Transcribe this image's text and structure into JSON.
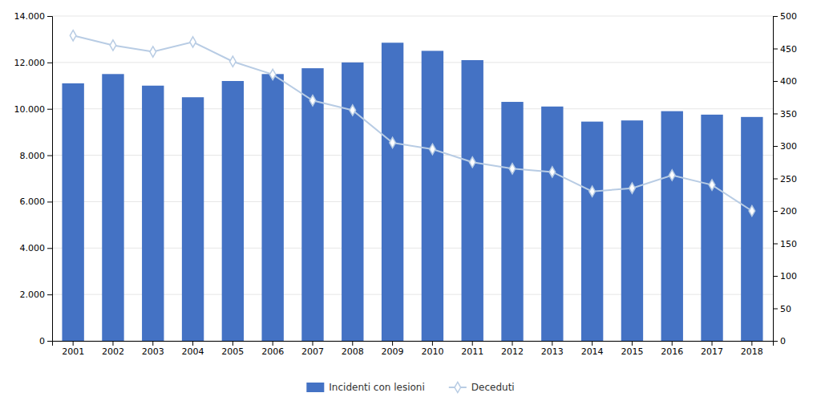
{
  "chart_data": {
    "type": "bar",
    "categories": [
      2001,
      2002,
      2003,
      2004,
      2005,
      2006,
      2007,
      2008,
      2009,
      2010,
      2011,
      2012,
      2013,
      2014,
      2015,
      2016,
      2017,
      2018
    ],
    "series": [
      {
        "name": "Incidenti con lesioni",
        "type": "bar",
        "color": "#4472c4",
        "values": [
          11100,
          11500,
          11000,
          10500,
          11200,
          11500,
          11750,
          12000,
          12850,
          12500,
          12100,
          10300,
          10100,
          9450,
          9500,
          9900,
          9750,
          9650
        ]
      },
      {
        "name": "Deceduti",
        "type": "line",
        "axis": "y2",
        "color": "#b8cce4",
        "marker": "diamond",
        "values": [
          470,
          455,
          445,
          460,
          430,
          410,
          370,
          355,
          305,
          295,
          275,
          265,
          260,
          230,
          235,
          255,
          240,
          200
        ]
      }
    ],
    "ylim": [
      0,
      14000
    ],
    "yticks": [
      0,
      {
        "value": 2000,
        "label": "2.000"
      },
      {
        "value": 4000,
        "label": "4.000"
      },
      {
        "value": 6000,
        "label": "6.000"
      },
      {
        "value": 8000,
        "label": "8.000"
      },
      {
        "value": 10000,
        "label": "10.000"
      },
      {
        "value": 12000,
        "label": "12.000"
      },
      {
        "value": 14000,
        "label": "14.000"
      }
    ],
    "y2lim": [
      0,
      500
    ],
    "y2ticks": [
      0,
      50,
      100,
      150,
      200,
      250,
      300,
      350,
      400,
      450,
      500
    ],
    "grid": true,
    "legend": "bottom"
  }
}
